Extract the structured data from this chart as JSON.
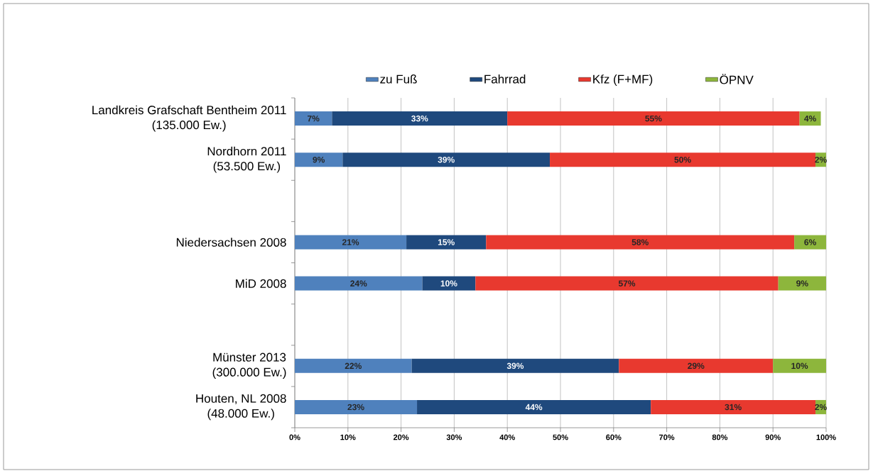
{
  "chart_data": {
    "type": "bar",
    "orientation": "horizontal",
    "stacked": true,
    "categories": [
      "Landkreis Grafschaft Bentheim 2011\n(135.000 Ew.)",
      "Nordhorn 2011\n(53.500 Ew.)",
      null,
      "Niedersachsen 2008",
      "MiD 2008",
      null,
      "Münster 2013\n(300.000 Ew.)",
      "Houten, NL 2008\n(48.000 Ew.)"
    ],
    "series": [
      {
        "name": "zu Fuß",
        "color": "#4f81bd",
        "values": [
          7,
          9,
          null,
          21,
          24,
          null,
          22,
          23
        ],
        "value_labels": [
          "7%",
          "9%",
          null,
          "21%",
          "24%",
          null,
          "22%",
          "23%"
        ]
      },
      {
        "name": "Fahrrad",
        "color": "#1f497d",
        "values": [
          33,
          39,
          null,
          15,
          10,
          null,
          39,
          44
        ],
        "value_labels": [
          "33%",
          "39%",
          null,
          "15%",
          "10%",
          null,
          "39%",
          "44%"
        ]
      },
      {
        "name": "Kfz (F+MF)",
        "color": "#e8392f",
        "values": [
          55,
          50,
          null,
          58,
          57,
          null,
          29,
          31
        ],
        "value_labels": [
          "55%",
          "50%",
          null,
          "58%",
          "57%",
          null,
          "29%",
          "31%"
        ]
      },
      {
        "name": "ÖPNV",
        "color": "#8db63c",
        "values": [
          4,
          2,
          null,
          6,
          9,
          null,
          10,
          2
        ],
        "value_labels": [
          "4%",
          "2%",
          null,
          "6%",
          "9%",
          null,
          "10%",
          "2%"
        ]
      }
    ],
    "xlim": [
      0,
      100
    ],
    "xticks": [
      {
        "value": 0,
        "label": "0%"
      },
      {
        "value": 10,
        "label": "10%"
      },
      {
        "value": 20,
        "label": "20%"
      },
      {
        "value": 30,
        "label": "30%"
      },
      {
        "value": 40,
        "label": "40%"
      },
      {
        "value": 50,
        "label": "50%"
      },
      {
        "value": 60,
        "label": "60%"
      },
      {
        "value": 70,
        "label": "70%"
      },
      {
        "value": 80,
        "label": "80%"
      },
      {
        "value": 90,
        "label": "90%"
      },
      {
        "value": 100,
        "label": "100%"
      }
    ],
    "grid": "x",
    "legend": "top"
  }
}
